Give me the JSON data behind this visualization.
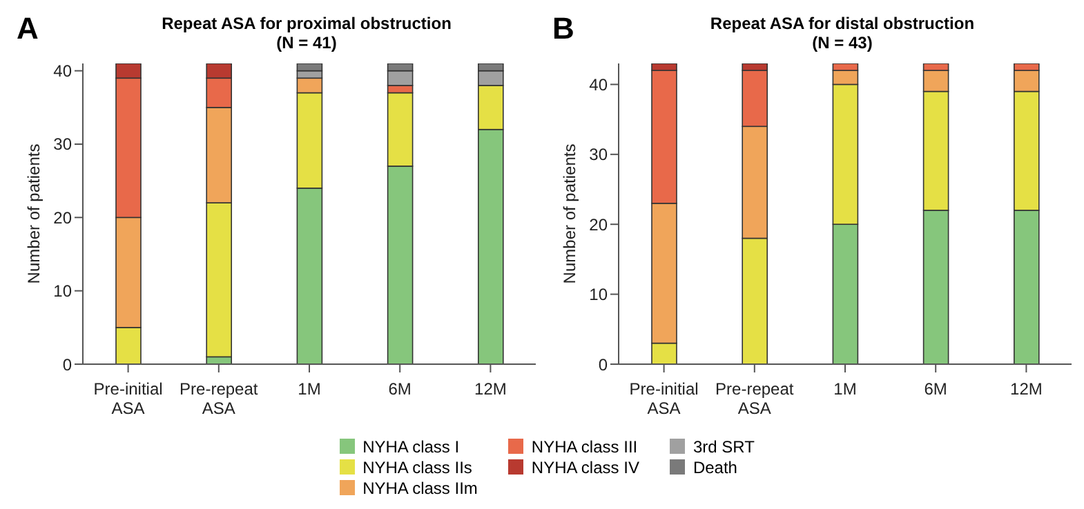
{
  "chart_data": [
    {
      "type": "bar",
      "stacked": true,
      "title": "Repeat ASA for proximal obstruction\n(N = 41)",
      "ylabel": "Number of patients",
      "annotations": [
        "A"
      ],
      "categories": [
        "Pre-initial\nASA",
        "Pre-repeat\nASA",
        "1M",
        "6M",
        "12M"
      ],
      "ylim": [
        0,
        41
      ],
      "yticks": [
        0,
        10,
        20,
        30,
        40
      ],
      "legend": "bottom",
      "grid": false,
      "series": [
        {
          "name": "NYHA class I",
          "color": "#86c67c",
          "values": [
            0,
            1,
            24,
            27,
            32
          ]
        },
        {
          "name": "NYHA class IIs",
          "color": "#e5e045",
          "values": [
            5,
            21,
            13,
            10,
            6
          ]
        },
        {
          "name": "NYHA class IIm",
          "color": "#f0a55a",
          "values": [
            15,
            13,
            2,
            0,
            0
          ]
        },
        {
          "name": "NYHA class III",
          "color": "#e8694a",
          "values": [
            19,
            4,
            0,
            1,
            0
          ]
        },
        {
          "name": "NYHA class IV",
          "color": "#b83a30",
          "values": [
            2,
            2,
            0,
            0,
            0
          ]
        },
        {
          "name": "3rd SRT",
          "color": "#a0a0a0",
          "values": [
            0,
            0,
            1,
            2,
            2
          ]
        },
        {
          "name": "Death",
          "color": "#7a7a7a",
          "values": [
            0,
            0,
            1,
            1,
            1
          ]
        }
      ]
    },
    {
      "type": "bar",
      "stacked": true,
      "title": "Repeat ASA for distal obstruction\n(N = 43)",
      "ylabel": "Number of patients",
      "annotations": [
        "B"
      ],
      "categories": [
        "Pre-initial\nASA",
        "Pre-repeat\nASA",
        "1M",
        "6M",
        "12M"
      ],
      "ylim": [
        0,
        43
      ],
      "yticks": [
        0,
        10,
        20,
        30,
        40
      ],
      "grid": false,
      "series": [
        {
          "color": "#86c67c",
          "values": [
            0,
            0,
            20,
            22,
            22
          ]
        },
        {
          "color": "#e5e045",
          "values": [
            3,
            18,
            20,
            17,
            17
          ]
        },
        {
          "color": "#f0a55a",
          "values": [
            20,
            16,
            2,
            3,
            3
          ]
        },
        {
          "color": "#e8694a",
          "values": [
            19,
            8,
            1,
            1,
            1
          ]
        },
        {
          "color": "#b83a30",
          "values": [
            1,
            1,
            0,
            0,
            0
          ]
        }
      ]
    }
  ]
}
